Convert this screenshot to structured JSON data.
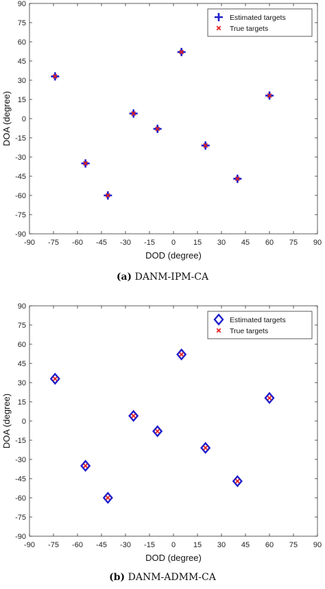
{
  "chart_data": [
    {
      "type": "scatter",
      "xlabel": "DOD (degree)",
      "ylabel": "DOA (degree)",
      "xlim": [
        -90,
        90
      ],
      "ylim": [
        -90,
        90
      ],
      "xticks": [
        "-90",
        "-75",
        "-60",
        "-45",
        "-30",
        "-15",
        "0",
        "15",
        "30",
        "45",
        "60",
        "75",
        "90"
      ],
      "yticks": [
        "90",
        "75",
        "60",
        "45",
        "30",
        "15",
        "0",
        "-15",
        "-30",
        "-45",
        "-60",
        "-75",
        "-90"
      ],
      "legend_position": "top-right",
      "series": [
        {
          "name": "Estimated targets",
          "marker": "plus",
          "color": "#1f1fcc",
          "x": [
            -74,
            5,
            60,
            -25,
            -10,
            20,
            -55,
            40,
            -41
          ],
          "y": [
            33,
            52,
            18,
            4,
            -8,
            -21,
            -35,
            -47,
            -60
          ]
        },
        {
          "name": "True targets",
          "marker": "x",
          "color": "#e32222",
          "x": [
            -74,
            5,
            60,
            -25,
            -10,
            20,
            -55,
            40,
            -41
          ],
          "y": [
            33,
            52,
            18,
            4,
            -8,
            -21,
            -35,
            -47,
            -60
          ]
        }
      ],
      "caption_tag": "(a)",
      "caption_text": "DANM-IPM-CA"
    },
    {
      "type": "scatter",
      "xlabel": "DOD (degree)",
      "ylabel": "DOA (degree)",
      "xlim": [
        -90,
        90
      ],
      "ylim": [
        -90,
        90
      ],
      "xticks": [
        "-90",
        "-75",
        "-60",
        "-45",
        "-30",
        "-15",
        "0",
        "15",
        "30",
        "45",
        "60",
        "75",
        "90"
      ],
      "yticks": [
        "90",
        "75",
        "60",
        "45",
        "30",
        "15",
        "0",
        "-15",
        "-30",
        "-45",
        "-60",
        "-75",
        "-90"
      ],
      "legend_position": "top-right",
      "series": [
        {
          "name": "Estimated targets",
          "marker": "diamond",
          "color": "#1f1fcc",
          "x": [
            -74,
            5,
            60,
            -25,
            -10,
            20,
            -55,
            40,
            -41
          ],
          "y": [
            33,
            52,
            18,
            4,
            -8,
            -21,
            -35,
            -47,
            -60
          ]
        },
        {
          "name": "True targets",
          "marker": "x",
          "color": "#e32222",
          "x": [
            -74,
            5,
            60,
            -25,
            -10,
            20,
            -55,
            40,
            -41
          ],
          "y": [
            33,
            52,
            18,
            4,
            -8,
            -21,
            -35,
            -47,
            -60
          ]
        }
      ],
      "caption_tag": "(b)",
      "caption_text": "DANM-ADMM-CA"
    }
  ]
}
